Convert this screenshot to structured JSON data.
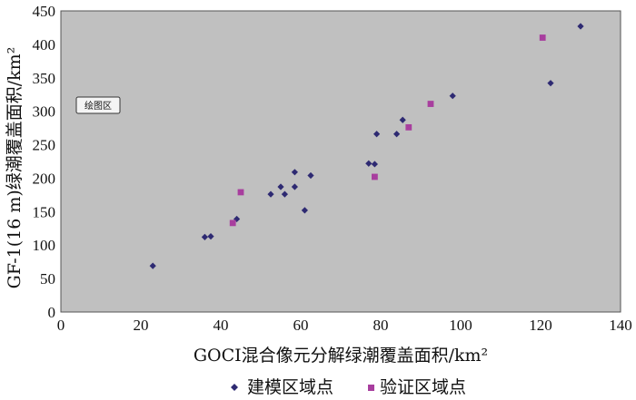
{
  "chart_data": {
    "type": "scatter",
    "plot_area_label": "绘图区",
    "xlabel": "GOCI混合像元分解绿潮覆盖面积/km²",
    "ylabel": "GF-1(16 m)绿潮覆盖面积/km²",
    "xlim": [
      0,
      140
    ],
    "ylim": [
      0,
      450
    ],
    "xticks": [
      0,
      20,
      40,
      60,
      80,
      100,
      120,
      140
    ],
    "yticks": [
      0,
      50,
      100,
      150,
      200,
      250,
      300,
      350,
      400,
      450
    ],
    "grid": false,
    "legend_position": "bottom",
    "series": [
      {
        "name": "建模区域点",
        "marker": "diamond",
        "color": "#2e2a72",
        "points": [
          [
            23,
            69
          ],
          [
            36,
            112
          ],
          [
            37.5,
            113
          ],
          [
            44,
            139
          ],
          [
            52.5,
            176
          ],
          [
            55,
            187
          ],
          [
            56,
            176
          ],
          [
            58.5,
            187
          ],
          [
            58.5,
            209
          ],
          [
            61,
            152
          ],
          [
            62.5,
            204
          ],
          [
            77,
            222
          ],
          [
            78.5,
            221
          ],
          [
            79,
            266
          ],
          [
            84,
            266
          ],
          [
            85.5,
            287
          ],
          [
            98,
            323
          ],
          [
            122.5,
            342
          ],
          [
            130,
            427
          ]
        ]
      },
      {
        "name": "验证区域点",
        "marker": "square",
        "color": "#a83e9e",
        "points": [
          [
            43,
            133
          ],
          [
            45,
            179
          ],
          [
            78.5,
            202
          ],
          [
            87,
            276
          ],
          [
            92.5,
            311
          ],
          [
            120.5,
            410
          ]
        ]
      }
    ]
  }
}
